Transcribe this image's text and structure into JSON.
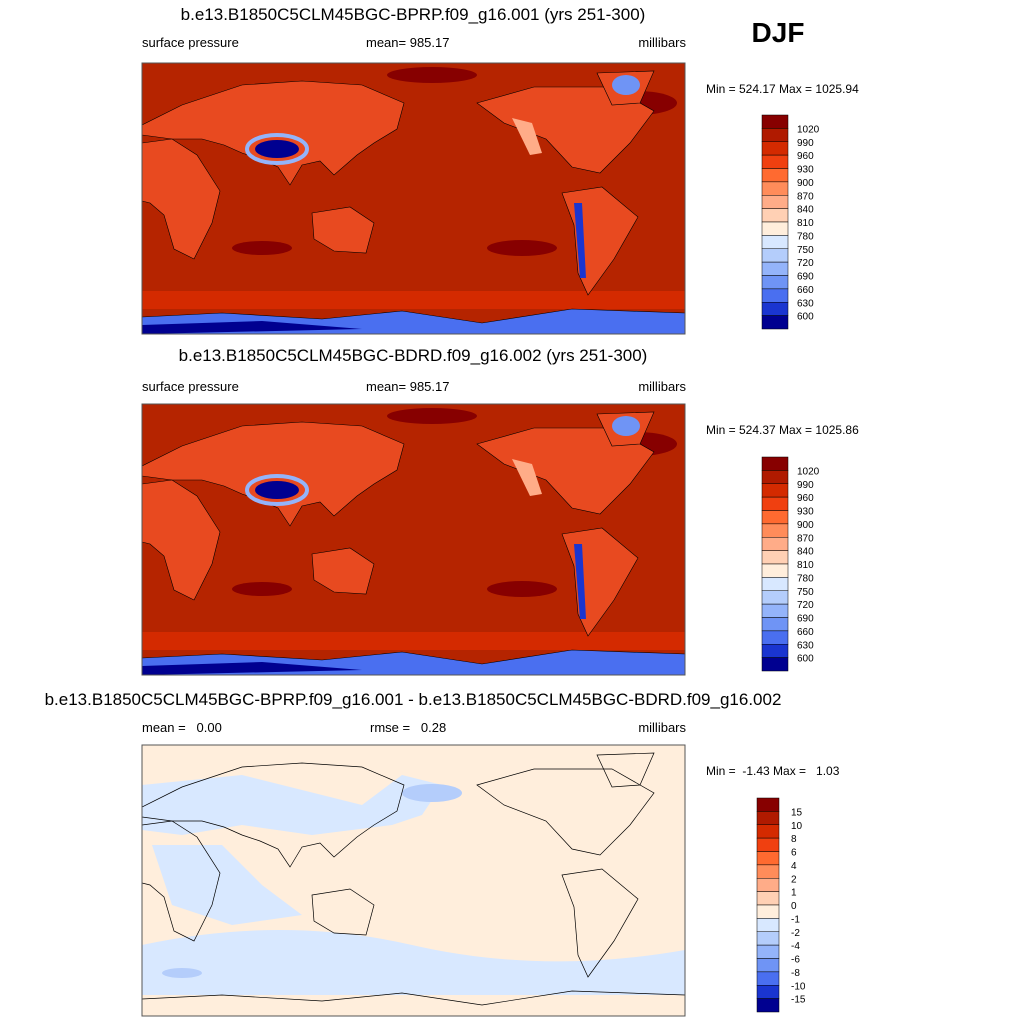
{
  "label": "DJF",
  "panels": [
    {
      "title": "b.e13.B1850C5CLM45BGC-BPRP.f09_g16.001 (yrs 251-300)",
      "left": "surface pressure",
      "center": "mean= 985.17",
      "right": "millibars",
      "stats": "Min = 524.17 Max = 1025.94",
      "colorbar": {
        "labels": [
          1020,
          990,
          960,
          930,
          900,
          870,
          840,
          810,
          780,
          750,
          720,
          690,
          660,
          630,
          600
        ],
        "colors": [
          "#870000",
          "#b01a00",
          "#d42a00",
          "#f04010",
          "#ff6a30",
          "#ff8c5a",
          "#ffac88",
          "#ffd0b4",
          "#ffeedc",
          "#d8e8ff",
          "#b4cdfb",
          "#94b4fa",
          "#6f94f5",
          "#4a6ff0",
          "#1a35d0",
          "#000090"
        ]
      }
    },
    {
      "title": "b.e13.B1850C5CLM45BGC-BDRD.f09_g16.002 (yrs 251-300)",
      "left": "surface pressure",
      "center": "mean= 985.17",
      "right": "millibars",
      "stats": "Min = 524.37 Max = 1025.86",
      "colorbar": {
        "labels": [
          1020,
          990,
          960,
          930,
          900,
          870,
          840,
          810,
          780,
          750,
          720,
          690,
          660,
          630,
          600
        ],
        "colors": [
          "#870000",
          "#b01a00",
          "#d42a00",
          "#f04010",
          "#ff6a30",
          "#ff8c5a",
          "#ffac88",
          "#ffd0b4",
          "#ffeedc",
          "#d8e8ff",
          "#b4cdfb",
          "#94b4fa",
          "#6f94f5",
          "#4a6ff0",
          "#1a35d0",
          "#000090"
        ]
      }
    },
    {
      "title": "b.e13.B1850C5CLM45BGC-BPRP.f09_g16.001 - b.e13.B1850C5CLM45BGC-BDRD.f09_g16.002",
      "left": "mean =   0.00",
      "center": "rmse =   0.28",
      "right": "millibars",
      "stats": "Min =  -1.43 Max =   1.03",
      "colorbar": {
        "labels": [
          15,
          10,
          8,
          6,
          4,
          2,
          1,
          0,
          -1,
          -2,
          -4,
          -6,
          -8,
          -10,
          -15
        ],
        "colors": [
          "#870000",
          "#b01a00",
          "#d42a00",
          "#f04010",
          "#ff6a30",
          "#ff8c5a",
          "#ffac88",
          "#ffd0b4",
          "#ffeedc",
          "#d8e8ff",
          "#b4cdfb",
          "#94b4fa",
          "#6f94f5",
          "#4a6ff0",
          "#1a35d0",
          "#000090"
        ]
      }
    }
  ]
}
